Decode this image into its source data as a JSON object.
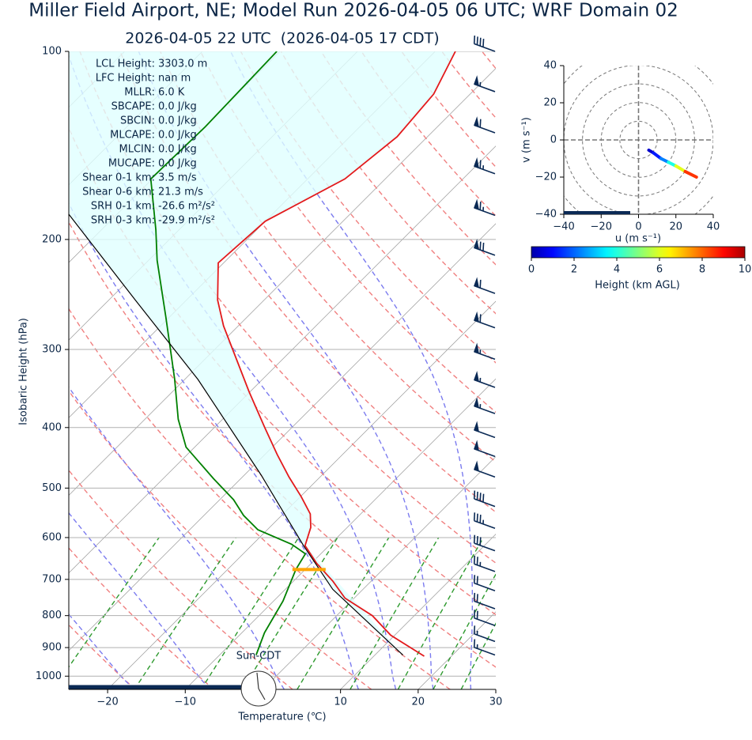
{
  "chart_data": [
    {
      "type": "skewt",
      "title": "Miller Field Airport, NE; Model Run 2026-04-05 06 UTC; WRF Domain 02",
      "subtitle": "2026-04-05 22 UTC  (2026-04-05 17 CDT)",
      "xlabel": "Temperature (℃)",
      "ylabel": "Isobaric Height (hPa)",
      "xlim": [
        -25,
        30
      ],
      "ylim": [
        1050,
        100
      ],
      "log_y": true,
      "grid": true,
      "xticks": [
        {
          "value": -20,
          "label": "−20"
        },
        {
          "value": -10,
          "label": "−10"
        },
        10,
        20,
        30
      ],
      "yticks": [
        100,
        200,
        300,
        400,
        500,
        600,
        700,
        800,
        900,
        1000
      ],
      "series": [
        {
          "color": "#e31a1c",
          "pressure": [
            929,
            860,
            800,
            750,
            705,
            660,
            618,
            578,
            550,
            516,
            480,
            442,
            400,
            350,
            303,
            275,
            250,
            218,
            187,
            160,
            137,
            117,
            100
          ],
          "values": [
            16.5,
            9.5,
            4.6,
            -1.2,
            -4.9,
            -9.3,
            -13.1,
            -14.7,
            -16.5,
            -19.9,
            -24,
            -28.4,
            -33.5,
            -40.2,
            -47.2,
            -51.9,
            -56,
            -60.7,
            -60,
            -55.2,
            -53.9,
            -54.7,
            -57.4
          ]
        },
        {
          "color": "#008000",
          "pressure": [
            925,
            852,
            758,
            675,
            637,
            615,
            583,
            553,
            522,
            483,
            430,
            388,
            335,
            266,
            216,
            193,
            160,
            132,
            100
          ],
          "values": [
            -5.3,
            -7.1,
            -8.8,
            -11.2,
            -12,
            -15,
            -21.2,
            -24.9,
            -28.2,
            -33.5,
            -41.1,
            -45.7,
            -51.3,
            -60.5,
            -68.9,
            -73,
            -80.2,
            -79.9,
            -80.4
          ]
        },
        {
          "color": "#000000",
          "pressure": [
            925,
            726,
            618,
            476,
            335,
            250,
            182
          ],
          "values": [
            13.6,
            -3.9,
            -13.3,
            -27.9,
            -48.3,
            -66.6,
            -86.3
          ]
        }
      ],
      "fill_color": "#e0ffff",
      "lcl_marker": {
        "pressure": 675,
        "temperature": -9.5,
        "color": "#ffa500"
      },
      "winds": {
        "color": "#0b2a55",
        "pressure": [
          100,
          116,
          135,
          157,
          183,
          212,
          244,
          277,
          311,
          345,
          380,
          415,
          445,
          480,
          535,
          580,
          630,
          680,
          730,
          780,
          830,
          880,
          925
        ],
        "speed": [
          40,
          55,
          60,
          65,
          65,
          70,
          60,
          60,
          55,
          55,
          55,
          50,
          50,
          50,
          40,
          35,
          30,
          25,
          20,
          20,
          20,
          15,
          15
        ],
        "direction": [
          290,
          290,
          290,
          290,
          290,
          290,
          290,
          290,
          290,
          290,
          290,
          290,
          290,
          290,
          290,
          290,
          290,
          290,
          290,
          290,
          290,
          290,
          290
        ]
      },
      "stats": [
        {
          "name": "LCL Height:",
          "value": "3303.0 m"
        },
        {
          "name": "LFC Height:",
          "value": "nan m"
        },
        {
          "name": "MLLR:",
          "value": "6.0 K"
        },
        {
          "name": "SBCAPE:",
          "value": "0.0 J/kg"
        },
        {
          "name": "SBCIN:",
          "value": "0.0 J/kg"
        },
        {
          "name": "MLCAPE:",
          "value": "0.0 J/kg"
        },
        {
          "name": "MLCIN:",
          "value": "0.0 J/kg"
        },
        {
          "name": "MUCAPE:",
          "value": "0.0 J/kg"
        },
        {
          "name": "Shear 0-1 km:",
          "value": "3.5 m/s"
        },
        {
          "name": "Shear 0-6 km:",
          "value": "21.3 m/s"
        },
        {
          "name": "SRH 0-1 km:",
          "value": "-26.6 m²/s²"
        },
        {
          "name": "SRH 0-3 km:",
          "value": "-29.9 m²/s²"
        }
      ],
      "time_label": "Sun-CDT"
    },
    {
      "type": "hodograph",
      "xlabel": "u (m s⁻¹)",
      "ylabel": "v (m s⁻¹)",
      "xlim": [
        -40,
        40
      ],
      "ylim": [
        -40,
        40
      ],
      "xticks": [
        {
          "value": -40,
          "label": "−40"
        },
        {
          "value": -20,
          "label": "−20"
        },
        0,
        20,
        40
      ],
      "yticks": [
        {
          "value": -40,
          "label": "−40"
        },
        {
          "value": -20,
          "label": "−20"
        },
        0,
        20,
        40
      ],
      "rings": [
        10,
        20,
        30,
        40,
        50
      ],
      "u": [
        5.5,
        8,
        12,
        16,
        20,
        25,
        31
      ],
      "v": [
        -5.5,
        -7,
        -10,
        -12,
        -14,
        -17,
        -20
      ],
      "height": [
        0.5,
        1,
        2,
        3,
        5,
        7,
        9.5
      ],
      "colorbar": {
        "label": "Height (km AGL)",
        "lim": [
          0,
          10
        ],
        "ticks": [
          0,
          2,
          4,
          6,
          8,
          10
        ]
      }
    }
  ]
}
